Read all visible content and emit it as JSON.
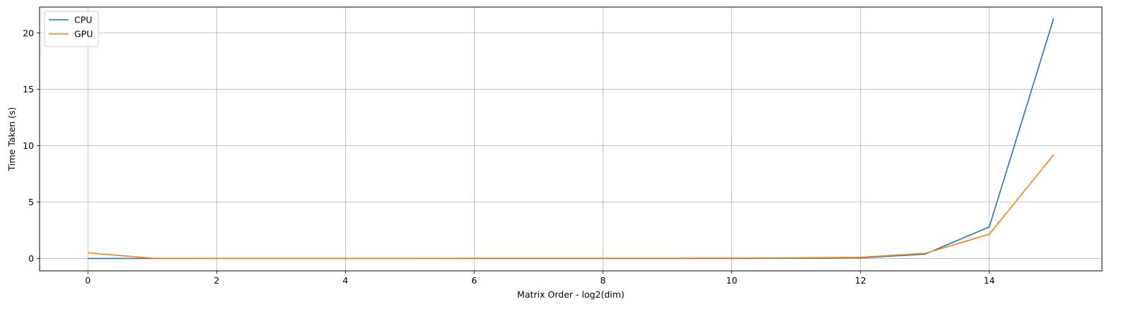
{
  "chart_data": {
    "type": "line",
    "title": "",
    "xlabel": "Matrix Order - log2(dim)",
    "ylabel": "Time Taken (s)",
    "xlim": [
      -0.75,
      15.75
    ],
    "ylim": [
      -1.1,
      22.3
    ],
    "xticks": [
      0,
      2,
      4,
      6,
      8,
      10,
      12,
      14
    ],
    "yticks": [
      0,
      5,
      10,
      15,
      20
    ],
    "grid": true,
    "legend_position": "top-left",
    "x": [
      0,
      1,
      2,
      3,
      4,
      5,
      6,
      7,
      8,
      9,
      10,
      11,
      12,
      13,
      14,
      15
    ],
    "series": [
      {
        "name": "CPU",
        "color": "#1f77b4",
        "values": [
          0.0,
          0.0,
          0.0,
          0.0,
          0.0,
          0.0,
          0.0,
          0.0,
          0.0,
          0.0,
          0.0,
          0.01,
          0.05,
          0.38,
          2.8,
          21.3
        ]
      },
      {
        "name": "GPU",
        "color": "#ff7f0e",
        "values": [
          0.5,
          0.02,
          0.01,
          0.01,
          0.01,
          0.01,
          0.02,
          0.02,
          0.02,
          0.02,
          0.03,
          0.05,
          0.1,
          0.45,
          2.15,
          9.2
        ]
      }
    ]
  }
}
